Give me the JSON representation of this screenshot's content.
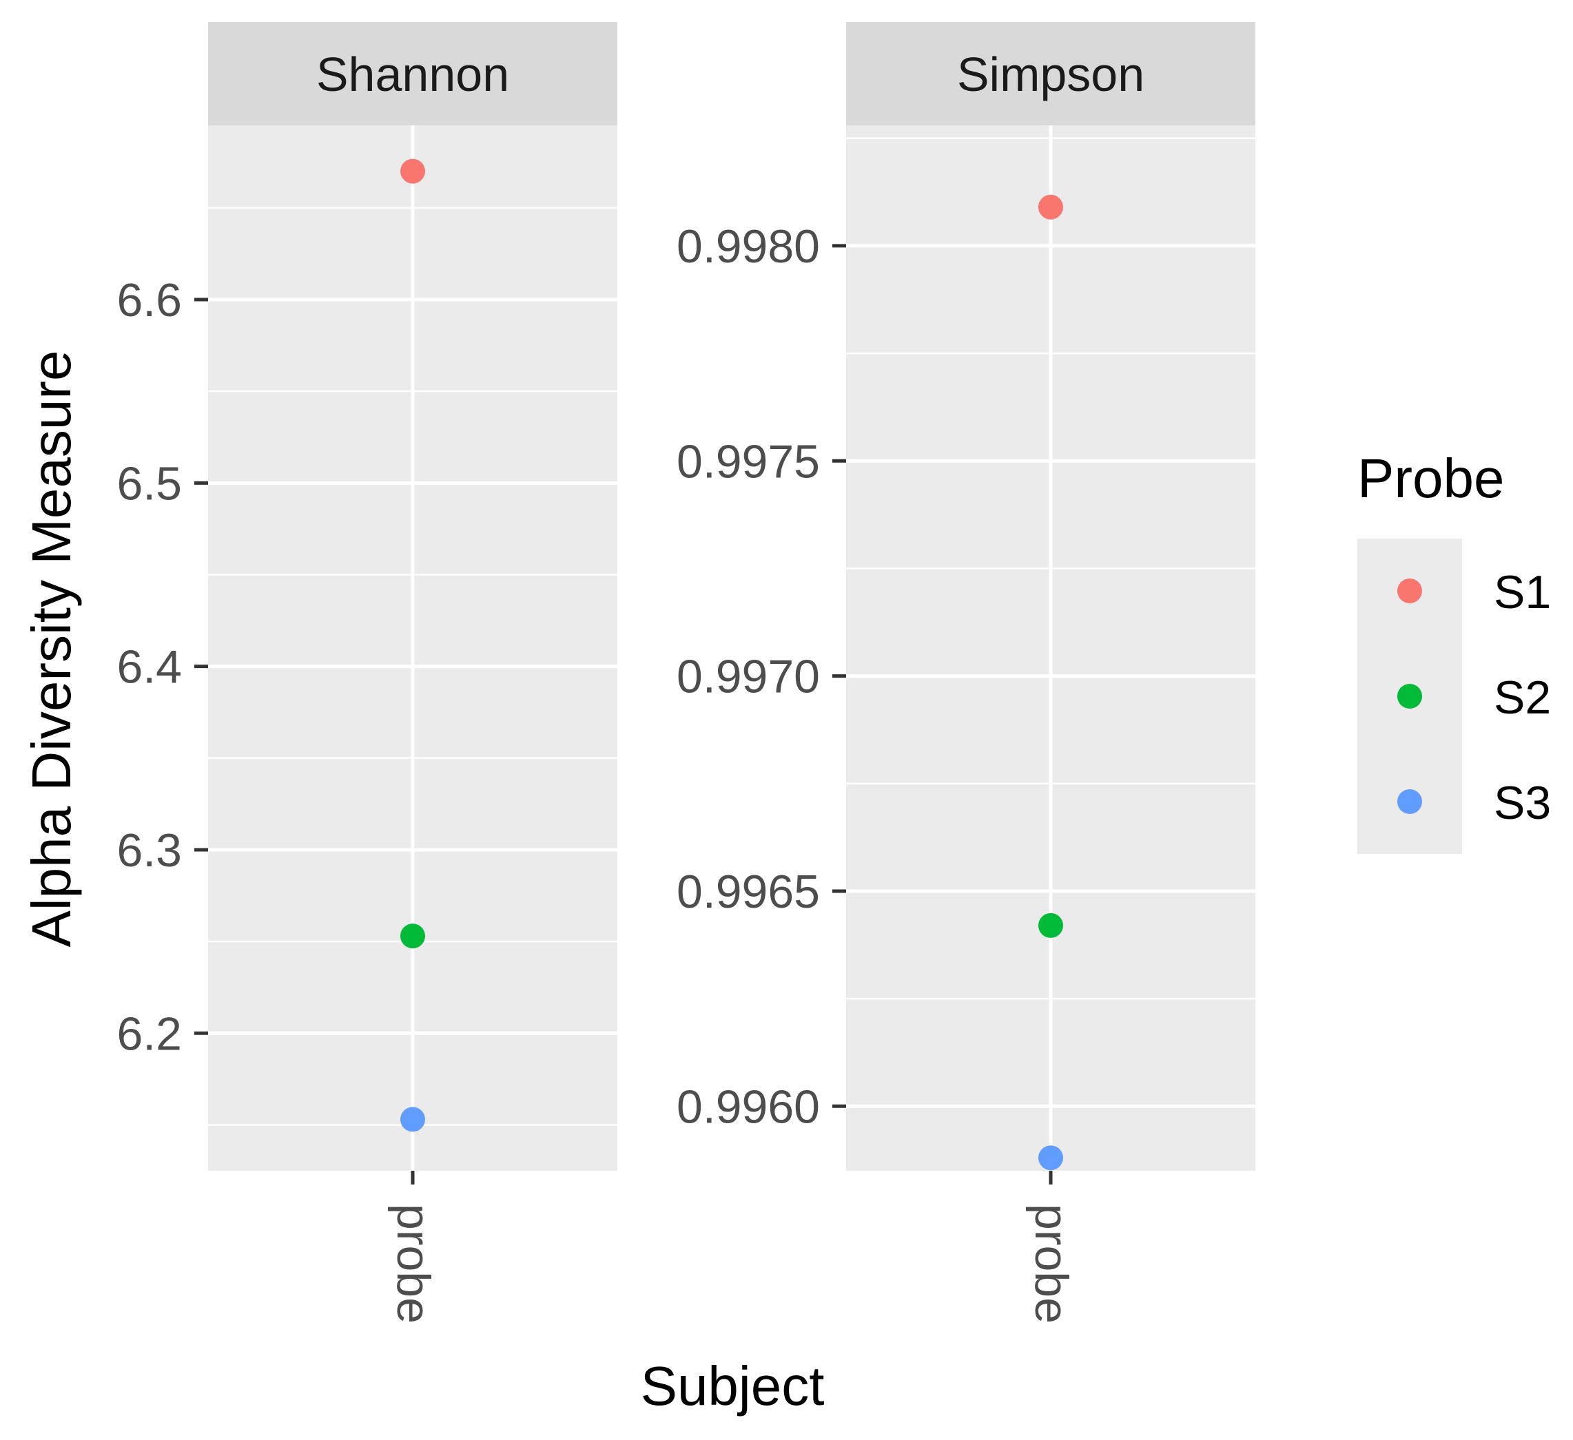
{
  "chart_data": {
    "type": "scatter",
    "ylabel": "Alpha Diversity Measure",
    "xlabel": "Subject",
    "legend": {
      "title": "Probe",
      "position": "right",
      "entries": [
        {
          "label": "S1",
          "color": "#F8766D"
        },
        {
          "label": "S2",
          "color": "#00BA38"
        },
        {
          "label": "S3",
          "color": "#619CFF"
        }
      ]
    },
    "panels": [
      {
        "title": "Shannon",
        "x_categories": [
          "probe"
        ],
        "ylim": [
          6.125,
          6.695
        ],
        "yticks": [
          6.2,
          6.3,
          6.4,
          6.5,
          6.6
        ],
        "ytick_labels": [
          "6.2",
          "6.3",
          "6.4",
          "6.5",
          "6.6"
        ],
        "points": [
          {
            "series": "S1",
            "x": "probe",
            "y": 6.67
          },
          {
            "series": "S2",
            "x": "probe",
            "y": 6.253
          },
          {
            "series": "S3",
            "x": "probe",
            "y": 6.153
          }
        ]
      },
      {
        "title": "Simpson",
        "x_categories": [
          "probe"
        ],
        "ylim": [
          0.99585,
          0.99828
        ],
        "yticks": [
          0.996,
          0.9965,
          0.997,
          0.9975,
          0.998
        ],
        "ytick_labels": [
          "0.9960",
          "0.9965",
          "0.9970",
          "0.9975",
          "0.9980"
        ],
        "points": [
          {
            "series": "S1",
            "x": "probe",
            "y": 0.99809
          },
          {
            "series": "S2",
            "x": "probe",
            "y": 0.99642
          },
          {
            "series": "S3",
            "x": "probe",
            "y": 0.99588
          }
        ]
      }
    ]
  }
}
